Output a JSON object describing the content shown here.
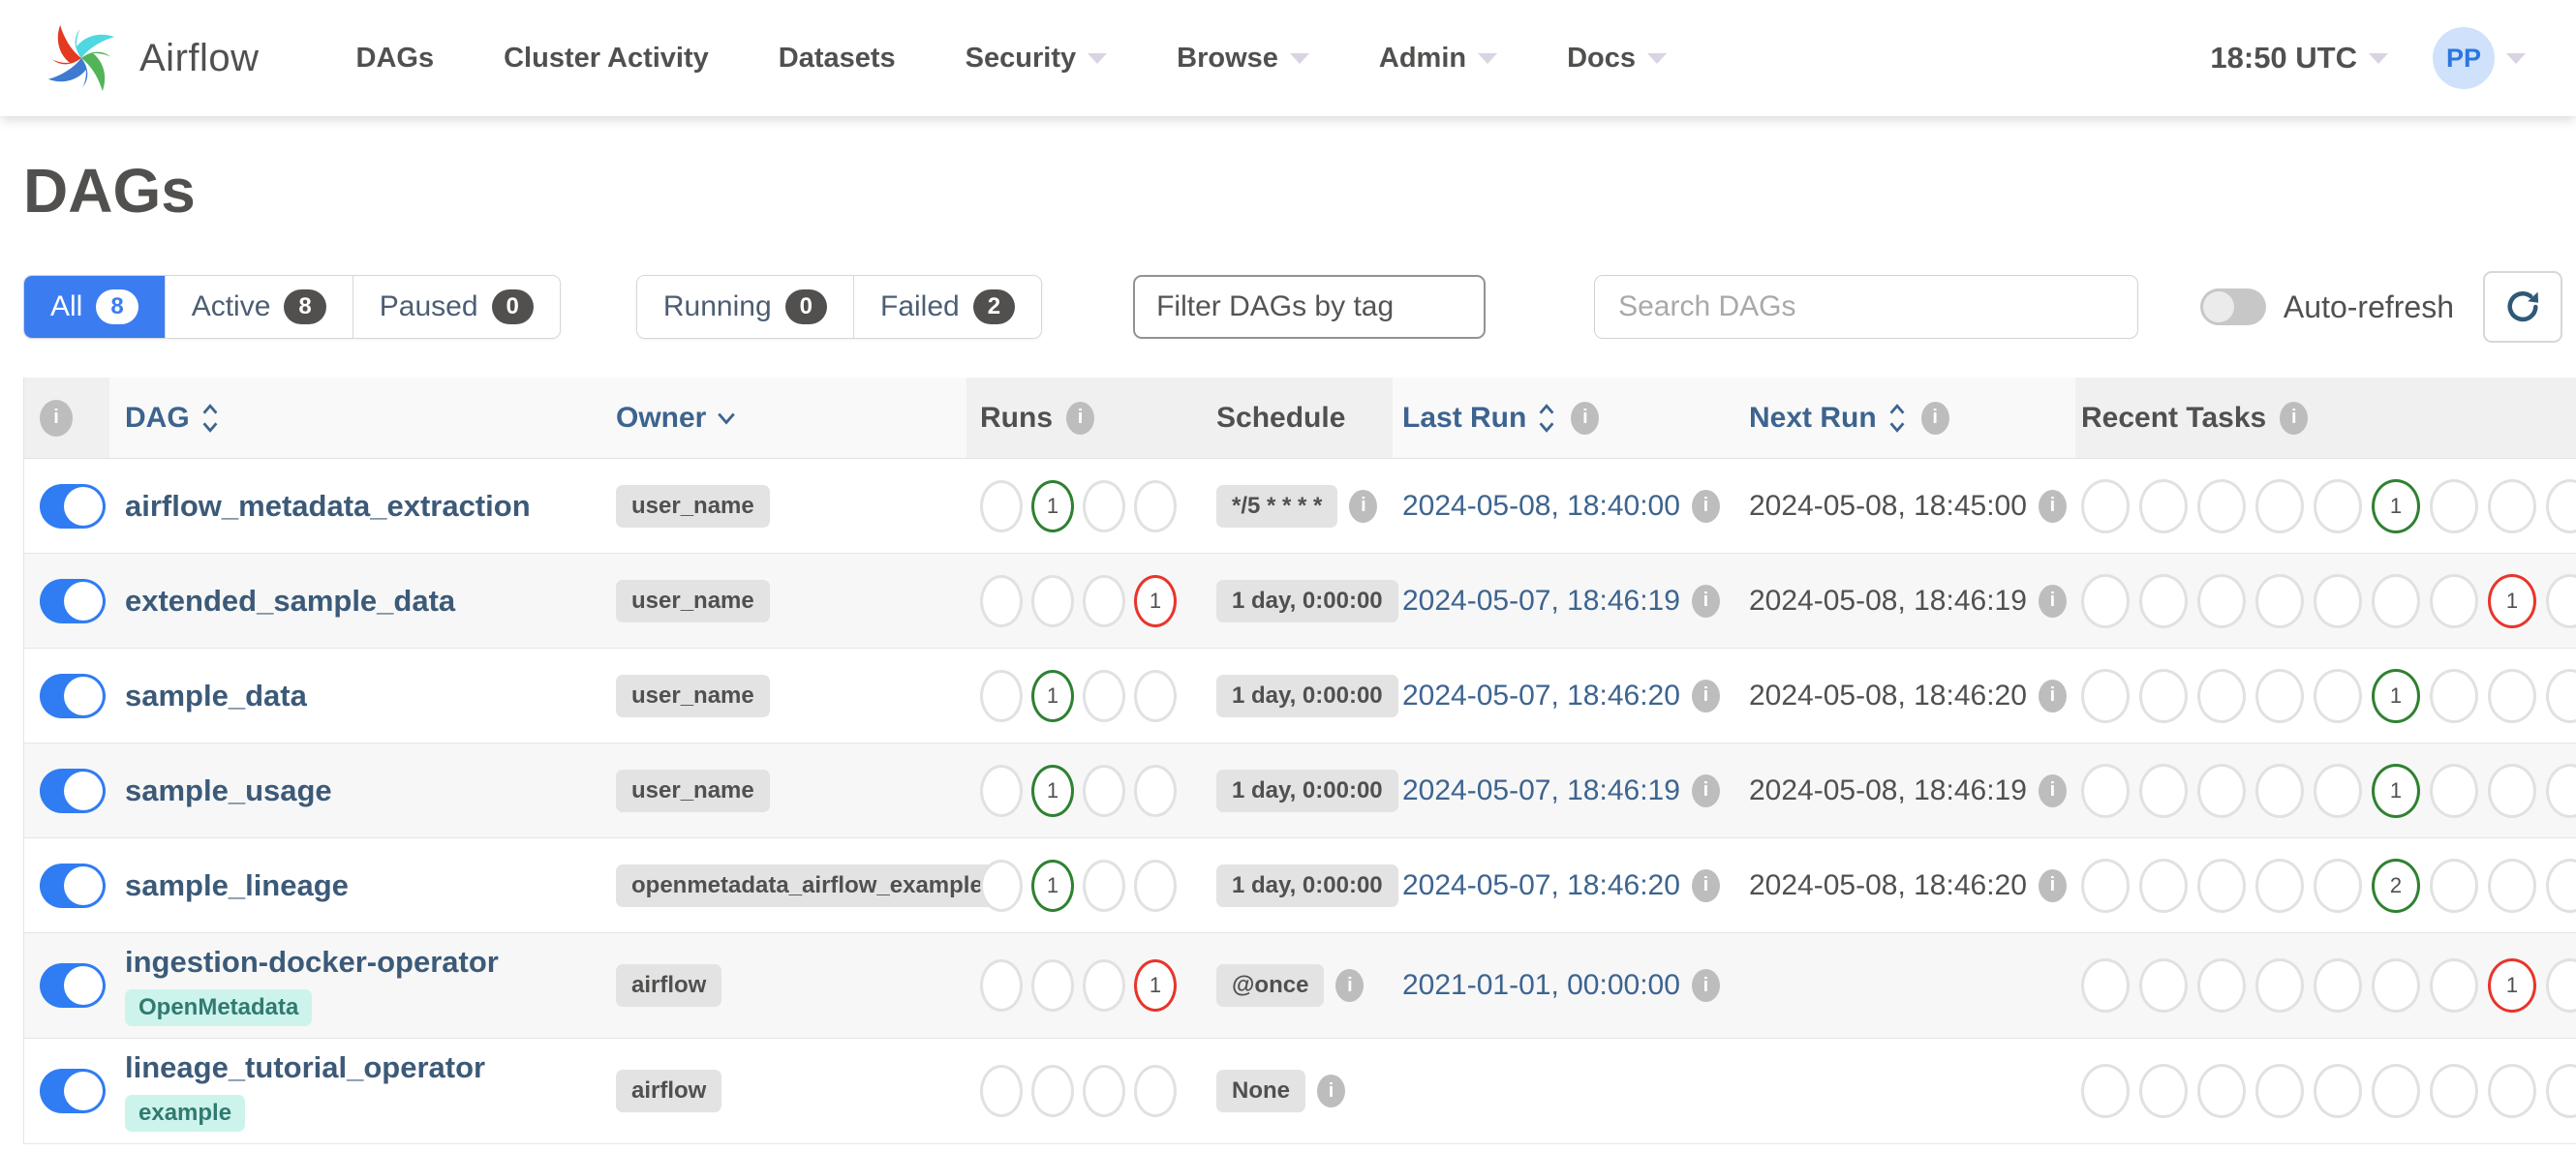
{
  "navbar": {
    "brand": "Airflow",
    "items": [
      {
        "label": "DAGs",
        "caret": false
      },
      {
        "label": "Cluster Activity",
        "caret": false
      },
      {
        "label": "Datasets",
        "caret": false
      },
      {
        "label": "Security",
        "caret": true
      },
      {
        "label": "Browse",
        "caret": true
      },
      {
        "label": "Admin",
        "caret": true
      },
      {
        "label": "Docs",
        "caret": true
      }
    ],
    "clock": "18:50 UTC",
    "avatar_initials": "PP"
  },
  "page": {
    "title": "DAGs"
  },
  "filters": {
    "tabs": [
      {
        "label": "All",
        "count": "8",
        "active": true
      },
      {
        "label": "Active",
        "count": "8",
        "active": false
      },
      {
        "label": "Paused",
        "count": "0",
        "active": false
      }
    ],
    "state_tabs": [
      {
        "label": "Running",
        "count": "0",
        "active": false
      },
      {
        "label": "Failed",
        "count": "2",
        "active": false
      }
    ],
    "tag_filter_placeholder": "Filter DAGs by tag",
    "search_placeholder": "Search DAGs",
    "auto_refresh_label": "Auto-refresh",
    "auto_refresh_on": false
  },
  "colors": {
    "accent_blue": "#3b7df0",
    "success_green": "#2f8132",
    "failed_red": "#e8352b",
    "link_steel_blue": "#3d648f"
  },
  "table": {
    "headers": {
      "dag": "DAG",
      "owner": "Owner",
      "runs": "Runs",
      "schedule": "Schedule",
      "last_run": "Last Run",
      "next_run": "Next Run",
      "recent_tasks": "Recent Tasks"
    },
    "rows": [
      {
        "dag_name": "airflow_metadata_extraction",
        "tag": null,
        "owner": "user_name",
        "paused": false,
        "runs": [
          null,
          {
            "count": "1",
            "status": "success"
          },
          null,
          null
        ],
        "schedule": {
          "label": "*/5 * * * *",
          "info": true
        },
        "last_run": "2024-05-08, 18:40:00",
        "next_run": "2024-05-08, 18:45:00",
        "recent_tasks": [
          null,
          null,
          null,
          null,
          null,
          {
            "count": "1",
            "status": "success"
          },
          null,
          null,
          null
        ]
      },
      {
        "dag_name": "extended_sample_data",
        "tag": null,
        "owner": "user_name",
        "paused": false,
        "runs": [
          null,
          null,
          null,
          {
            "count": "1",
            "status": "failed"
          }
        ],
        "schedule": {
          "label": "1 day, 0:00:00",
          "info": false
        },
        "last_run": "2024-05-07, 18:46:19",
        "next_run": "2024-05-08, 18:46:19",
        "recent_tasks": [
          null,
          null,
          null,
          null,
          null,
          null,
          null,
          {
            "count": "1",
            "status": "failed"
          },
          null
        ]
      },
      {
        "dag_name": "sample_data",
        "tag": null,
        "owner": "user_name",
        "paused": false,
        "runs": [
          null,
          {
            "count": "1",
            "status": "success"
          },
          null,
          null
        ],
        "schedule": {
          "label": "1 day, 0:00:00",
          "info": false
        },
        "last_run": "2024-05-07, 18:46:20",
        "next_run": "2024-05-08, 18:46:20",
        "recent_tasks": [
          null,
          null,
          null,
          null,
          null,
          {
            "count": "1",
            "status": "success"
          },
          null,
          null,
          null
        ]
      },
      {
        "dag_name": "sample_usage",
        "tag": null,
        "owner": "user_name",
        "paused": false,
        "runs": [
          null,
          {
            "count": "1",
            "status": "success"
          },
          null,
          null
        ],
        "schedule": {
          "label": "1 day, 0:00:00",
          "info": false
        },
        "last_run": "2024-05-07, 18:46:19",
        "next_run": "2024-05-08, 18:46:19",
        "recent_tasks": [
          null,
          null,
          null,
          null,
          null,
          {
            "count": "1",
            "status": "success"
          },
          null,
          null,
          null
        ]
      },
      {
        "dag_name": "sample_lineage",
        "tag": null,
        "owner": "openmetadata_airflow_example",
        "paused": false,
        "runs": [
          null,
          {
            "count": "1",
            "status": "success"
          },
          null,
          null
        ],
        "schedule": {
          "label": "1 day, 0:00:00",
          "info": false
        },
        "last_run": "2024-05-07, 18:46:20",
        "next_run": "2024-05-08, 18:46:20",
        "recent_tasks": [
          null,
          null,
          null,
          null,
          null,
          {
            "count": "2",
            "status": "success"
          },
          null,
          null,
          null
        ]
      },
      {
        "dag_name": "ingestion-docker-operator",
        "tag": "OpenMetadata",
        "owner": "airflow",
        "paused": false,
        "runs": [
          null,
          null,
          null,
          {
            "count": "1",
            "status": "failed"
          }
        ],
        "schedule": {
          "label": "@once",
          "info": true
        },
        "last_run": "2021-01-01, 00:00:00",
        "next_run": "",
        "recent_tasks": [
          null,
          null,
          null,
          null,
          null,
          null,
          null,
          {
            "count": "1",
            "status": "failed"
          },
          null
        ]
      },
      {
        "dag_name": "lineage_tutorial_operator",
        "tag": "example",
        "owner": "airflow",
        "paused": false,
        "runs": [
          null,
          null,
          null,
          null
        ],
        "schedule": {
          "label": "None",
          "info": true
        },
        "last_run": "",
        "next_run": "",
        "recent_tasks": [
          null,
          null,
          null,
          null,
          null,
          null,
          null,
          null,
          null
        ]
      }
    ]
  }
}
